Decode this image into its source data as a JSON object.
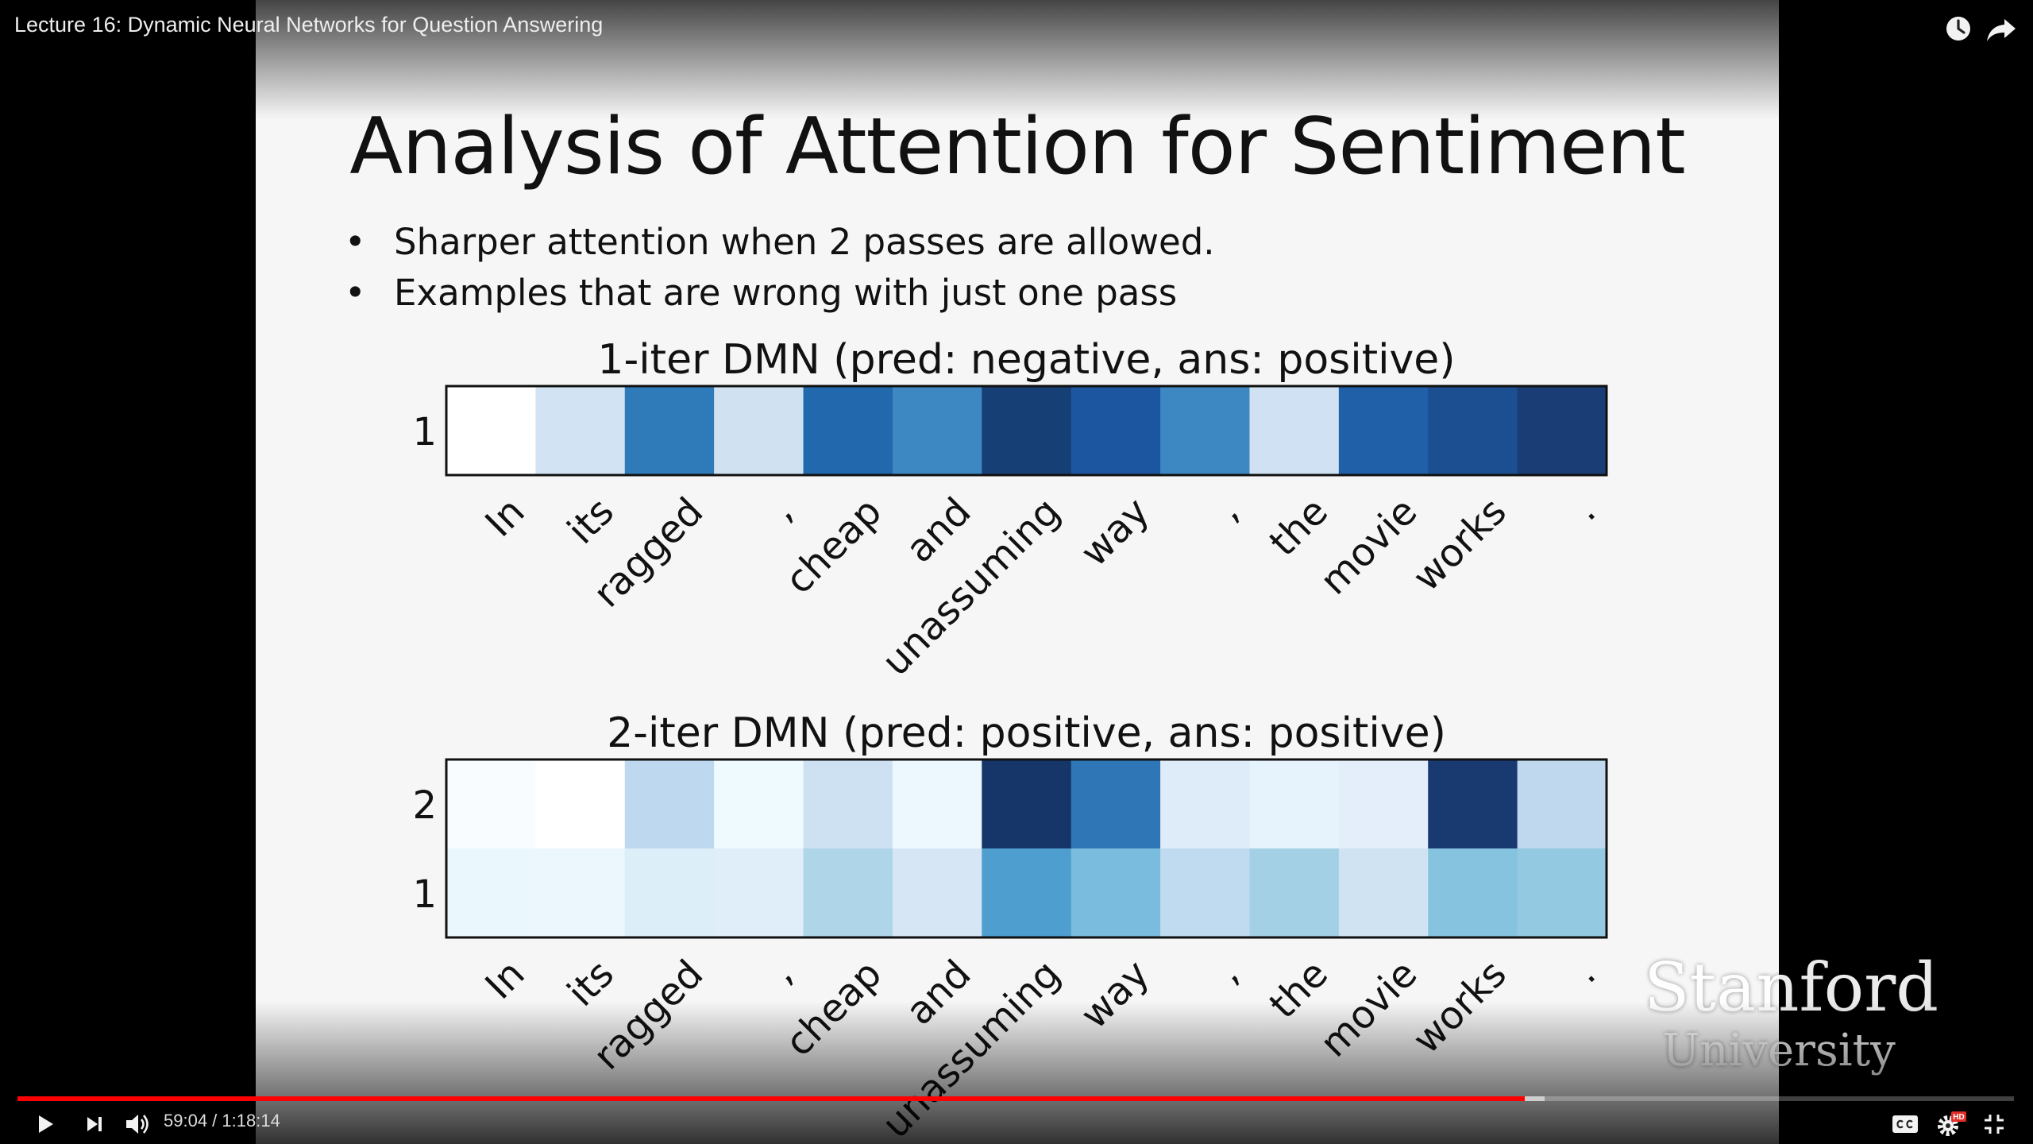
{
  "video": {
    "title": "Lecture 16: Dynamic Neural Networks for Question Answering",
    "current_time": "59:04",
    "time_separator": " / ",
    "duration": "1:18:14",
    "progress_fraction": 0.7549,
    "buffered_fraction": 0.7649,
    "progress_color": "#ff0000",
    "hd_badge": "HD"
  },
  "slide": {
    "title": "Analysis of Attention for Sentiment",
    "bullets": [
      "Sharper attention when 2 passes are allowed.",
      "Examples that are wrong with just one pass"
    ],
    "logo_line1": "Stanford",
    "logo_line2": "University"
  },
  "chart_data": [
    {
      "type": "heatmap",
      "title": "1-iter DMN (pred: negative, ans: positive)",
      "x": [
        "In",
        "its",
        "ragged",
        ",",
        "cheap",
        "and",
        "unassuming",
        "way",
        ",",
        "the",
        "movie",
        "works",
        "."
      ],
      "rows": [
        "1"
      ],
      "colors": [
        [
          "#ffffff",
          "#d2e4f3",
          "#2f7ab9",
          "#d0e2f2",
          "#2168ad",
          "#3d88c2",
          "#163f75",
          "#1c56a0",
          "#3d88c2",
          "#cfe1f2",
          "#2060a8",
          "#1c4f91",
          "#193d74"
        ]
      ]
    },
    {
      "type": "heatmap",
      "title": "2-iter DMN (pred: positive, ans: positive)",
      "x": [
        "In",
        "its",
        "ragged",
        ",",
        "cheap",
        "and",
        "unassuming",
        "way",
        ",",
        "the",
        "movie",
        "works",
        "."
      ],
      "rows": [
        "2",
        "1"
      ],
      "colors": [
        [
          "#f8fcff",
          "#ffffff",
          "#bed9ef",
          "#effafe",
          "#cde1f2",
          "#edf8fe",
          "#163669",
          "#2e76b6",
          "#deebf8",
          "#e6f3fd",
          "#e3eefa",
          "#193a71",
          "#bfd8ee"
        ],
        [
          "#eaf8fd",
          "#ecf6fd",
          "#dceef8",
          "#e0eef9",
          "#afd5e9",
          "#d6e6f5",
          "#4e9fcf",
          "#79bcdd",
          "#c0dbef",
          "#a3d0e5",
          "#d0e3f3",
          "#86c3df",
          "#93c9e1"
        ]
      ]
    }
  ],
  "icons": {
    "watch_later": "clock-icon",
    "share": "share-arrow-icon",
    "play": "play-icon",
    "next": "next-icon",
    "volume": "volume-icon",
    "captions": "cc-icon",
    "settings": "gear-icon",
    "exit_fullscreen": "exit-fullscreen-icon"
  }
}
